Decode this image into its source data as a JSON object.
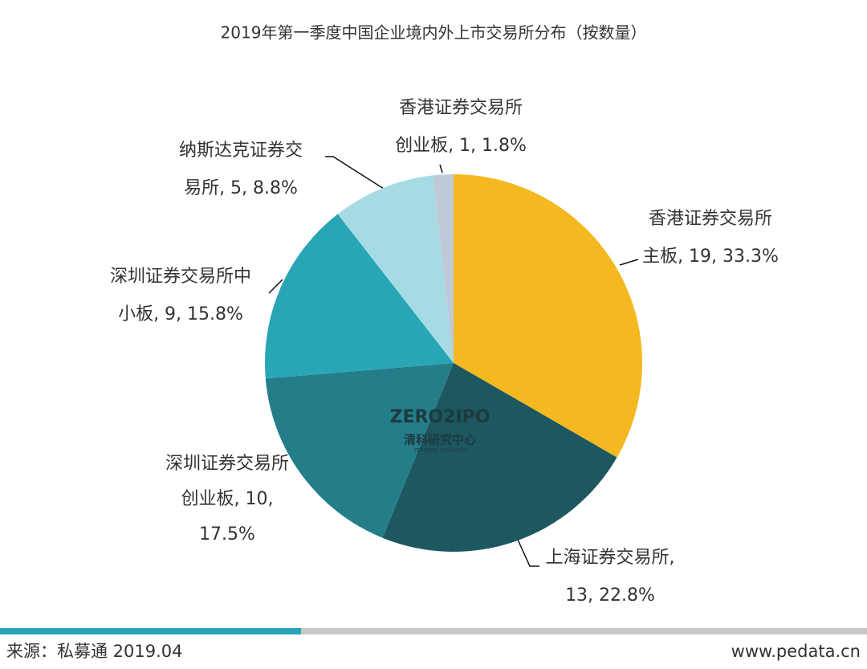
{
  "chart_data": {
    "type": "pie",
    "title": "2019年第一季度中国企业境内外上市交易所分布（按数量）",
    "values": [
      19,
      13,
      10,
      9,
      5,
      1
    ],
    "value_labels": [
      [
        "香港证券交易所",
        "主板, 19, 33.3%"
      ],
      [
        "上海证券交易所,",
        "13, 22.8%"
      ],
      [
        "深圳证券交易所",
        "创业板, 10,",
        "17.5%"
      ],
      [
        "深圳证券交易所中",
        "小板, 9, 15.8%"
      ],
      [
        "纳斯达克证券交",
        "易所, 5, 8.8%"
      ],
      [
        "香港证券交易所",
        "创业板, 1, 1.8%"
      ]
    ],
    "colors": [
      "#f4b920",
      "#1d5760",
      "#247e8a",
      "#29a6b6",
      "#a6dbe4",
      "#bfcad9"
    ]
  },
  "watermark": {
    "brand": "ZERO2IPO",
    "name": "清科研究中心",
    "sub": "ZEROZIPO RESEARCH"
  },
  "footer": {
    "source": "来源：私募通 2019.04",
    "site": "www.pedata.cn"
  }
}
